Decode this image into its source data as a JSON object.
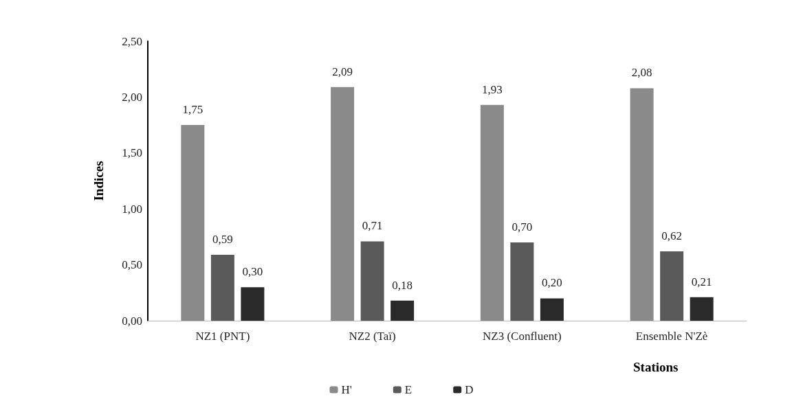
{
  "chart_data": {
    "type": "bar",
    "xlabel": "Stations",
    "ylabel": "Indices",
    "categories": [
      "NZ1 (PNT)",
      "NZ2 (Taï)",
      "NZ3 (Confluent)",
      "Ensemble N'Zè"
    ],
    "series": [
      {
        "name": "H'",
        "color": "#8a8a8a",
        "values": [
          1.75,
          2.09,
          1.93,
          2.08
        ],
        "value_labels": [
          "1,75",
          "2,09",
          "1,93",
          "2,08"
        ]
      },
      {
        "name": "E",
        "color": "#5a5a5a",
        "values": [
          0.59,
          0.71,
          0.7,
          0.62
        ],
        "value_labels": [
          "0,59",
          "0,71",
          "0,70",
          "0,62"
        ]
      },
      {
        "name": "D",
        "color": "#2a2a2a",
        "values": [
          0.3,
          0.18,
          0.2,
          0.21
        ],
        "value_labels": [
          "0,30",
          "0,18",
          "0,20",
          "0,21"
        ]
      }
    ],
    "ylim": [
      0,
      2.5
    ],
    "yticks": [
      {
        "value": 0,
        "label": "0,00"
      },
      {
        "value": 0.5,
        "label": "0,50"
      },
      {
        "value": 1,
        "label": "1,00"
      },
      {
        "value": 1.5,
        "label": "1,50"
      },
      {
        "value": 2,
        "label": "2,00"
      },
      {
        "value": 2.5,
        "label": "2,50"
      }
    ],
    "grid": false,
    "legend": "bottom"
  }
}
